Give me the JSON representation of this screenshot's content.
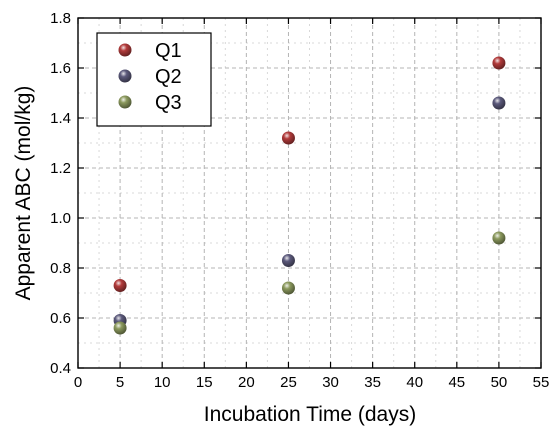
{
  "chart_data": {
    "type": "scatter",
    "title": "",
    "xlabel": "Incubation Time (days)",
    "ylabel": "Apparent ABC (mol/kg)",
    "xlim": [
      0,
      55
    ],
    "ylim": [
      0.4,
      1.8
    ],
    "xticks": [
      0,
      5,
      10,
      15,
      20,
      25,
      30,
      35,
      40,
      45,
      50,
      55
    ],
    "yticks": [
      0.4,
      0.6,
      0.8,
      1.0,
      1.2,
      1.4,
      1.6,
      1.8
    ],
    "ytick_labels": [
      "0.4",
      "0.6",
      "0.8",
      "1.0",
      "1.2",
      "1.4",
      "1.6",
      "1.8"
    ],
    "grid": true,
    "legend_position": "top-left",
    "series": [
      {
        "name": "Q1",
        "color": "#b23b3b",
        "x": [
          5,
          25,
          50
        ],
        "y": [
          0.73,
          1.32,
          1.62
        ]
      },
      {
        "name": "Q2",
        "color": "#5c5a7c",
        "x": [
          5,
          25,
          50
        ],
        "y": [
          0.59,
          0.83,
          1.46
        ]
      },
      {
        "name": "Q3",
        "color": "#8c9a5e",
        "x": [
          5,
          25,
          50
        ],
        "y": [
          0.56,
          0.72,
          0.92
        ]
      }
    ]
  }
}
